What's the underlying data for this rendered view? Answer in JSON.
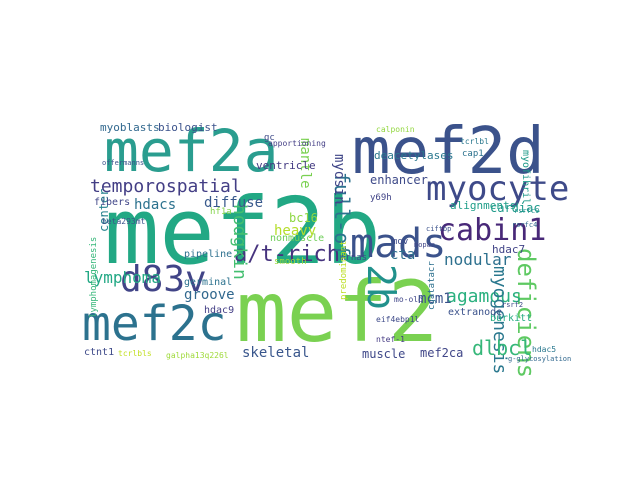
{
  "words": [
    {
      "text": "mef2b",
      "color": "#22a884"
    },
    {
      "text": "mef2d",
      "color": "#3b528b"
    },
    {
      "text": "mef2a",
      "color": "#2a9d8f"
    },
    {
      "text": "mef2",
      "color": "#7ad151"
    },
    {
      "text": "mef2c",
      "color": "#2c728e"
    },
    {
      "text": "myocyte",
      "color": "#3e4a89"
    },
    {
      "text": "cabin1",
      "color": "#482878"
    },
    {
      "text": "mads",
      "color": "#3b528b"
    },
    {
      "text": "2b",
      "color": "#21918c"
    },
    {
      "text": "d83v",
      "color": "#414487"
    },
    {
      "text": "deficiens",
      "color": "#5ec962"
    },
    {
      "text": "agamous",
      "color": "#2ab07f"
    },
    {
      "text": "a/t-rich",
      "color": "#46337e"
    },
    {
      "text": "temporospatial",
      "color": "#433e85"
    },
    {
      "text": "myogenesis",
      "color": "#2a788e"
    },
    {
      "text": "full-of",
      "color": "#2c728e"
    },
    {
      "text": "lymphoma",
      "color": "#22a884"
    },
    {
      "text": "dlbcl",
      "color": "#35b779"
    },
    {
      "text": "hodgkin",
      "color": "#44bf70"
    },
    {
      "text": "myosin",
      "color": "#404688"
    },
    {
      "text": "mantle",
      "color": "#7ad151"
    },
    {
      "text": "skeletal",
      "color": "#39568c"
    },
    {
      "text": "mcm1",
      "color": "#3b528b"
    },
    {
      "text": "nodular",
      "color": "#2d708e"
    },
    {
      "text": "cta",
      "color": "#2e6e8e"
    },
    {
      "text": "groove",
      "color": "#31688e"
    },
    {
      "text": "heavy",
      "color": "#b5de2b"
    },
    {
      "text": "muscle",
      "color": "#3f4889"
    },
    {
      "text": "mef2ca",
      "color": "#404688"
    },
    {
      "text": "hdacs",
      "color": "#2c728e"
    },
    {
      "text": "diffuse",
      "color": "#38598c"
    },
    {
      "text": "center",
      "color": "#26828e"
    },
    {
      "text": "bc16",
      "color": "#8fd744"
    },
    {
      "text": "cardiac",
      "color": "#1f9a8a"
    },
    {
      "text": "enhancer",
      "color": "#3e4a89"
    },
    {
      "text": "myoblasts",
      "color": "#31688e"
    },
    {
      "text": "biologist",
      "color": "#3b528b"
    },
    {
      "text": "deacetylases",
      "color": "#2a788e"
    },
    {
      "text": "alignments",
      "color": "#1f9e89"
    },
    {
      "text": "hdac7",
      "color": "#414487"
    },
    {
      "text": "myofibril",
      "color": "#1f9a8a"
    },
    {
      "text": "burkitt",
      "color": "#25ab82"
    },
    {
      "text": "extranode",
      "color": "#3b528b"
    },
    {
      "text": "ventricle",
      "color": "#443a83"
    },
    {
      "text": "fibers",
      "color": "#404688"
    },
    {
      "text": "pipeline",
      "color": "#2d708e"
    },
    {
      "text": "germinal",
      "color": "#2c728e"
    },
    {
      "text": "hdac9",
      "color": "#433e85"
    },
    {
      "text": "nonmuscle",
      "color": "#6ece58"
    },
    {
      "text": "smooth",
      "color": "#a0da39"
    },
    {
      "text": "mrnas",
      "color": "#3e4a89"
    },
    {
      "text": "predominant",
      "color": "#bddf26"
    },
    {
      "text": "ctnt1",
      "color": "#3e4a89"
    },
    {
      "text": "tcrlbls",
      "color": "#c2df23"
    },
    {
      "text": "galpha13q226l",
      "color": "#9fda3a"
    },
    {
      "text": "beta293mt",
      "color": "#3b528b"
    },
    {
      "text": "hf1a",
      "color": "#84d44b"
    },
    {
      "text": "y69h",
      "color": "#414487"
    },
    {
      "text": "cap1",
      "color": "#2c728e"
    },
    {
      "text": "tcrlbl",
      "color": "#2a788e"
    },
    {
      "text": "lymphomagenesis",
      "color": "#35b779"
    },
    {
      "text": "mov",
      "color": "#3e4a89"
    },
    {
      "text": "cgatatacr",
      "color": "#2d708e"
    },
    {
      "text": "mo-old",
      "color": "#404688"
    },
    {
      "text": "eif4ebp1l",
      "color": "#3e4a89"
    },
    {
      "text": "ntef-1",
      "color": "#443a83"
    },
    {
      "text": "hdac5",
      "color": "#2a788e"
    },
    {
      "text": "apportioning",
      "color": "#433e85"
    },
    {
      "text": "calponin",
      "color": "#93d741"
    },
    {
      "text": "gc",
      "color": "#3e4a89"
    },
    {
      "text": "offermanns",
      "color": "#3b528b"
    },
    {
      "text": "rsrfc4",
      "color": "#31688e"
    },
    {
      "text": "rsrf2",
      "color": "#3e4a89"
    },
    {
      "text": "mopac",
      "color": "#404688"
    },
    {
      "text": "ciftbp",
      "color": "#3b528b"
    },
    {
      "text": "rsrfc9",
      "color": "#21918c"
    },
    {
      "text": "g-glycosylation",
      "color": "#31688e"
    }
  ]
}
